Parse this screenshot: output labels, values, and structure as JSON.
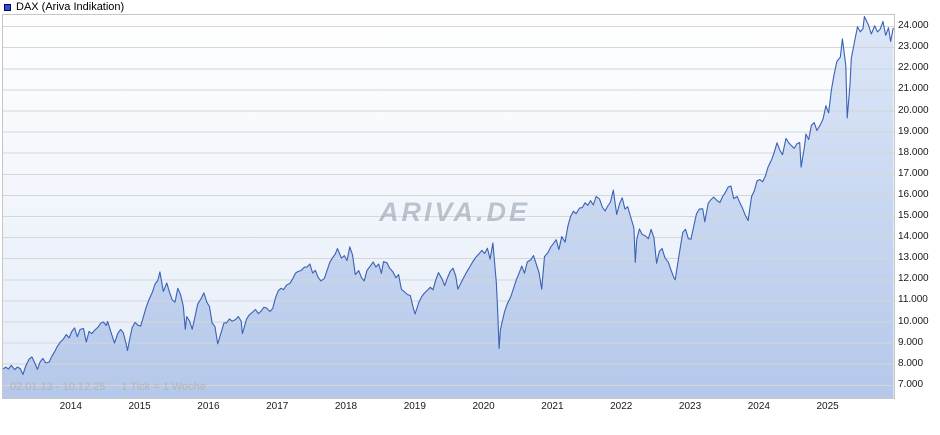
{
  "header": {
    "title": "DAX (Ariva Indikation)"
  },
  "watermark": "ARIVA.DE",
  "footer": {
    "date_range": "02.01.13 - 10.12.25",
    "tick_info": "1 Tick = 1 Woche"
  },
  "colors": {
    "series_swatch": "#2d4fd0",
    "line": "#3a62b5",
    "area_top": "#dce7f8",
    "area_bottom": "#b5c8ea",
    "grid": "#d6d6d6"
  },
  "chart_data": {
    "type": "area",
    "title": "DAX (Ariva Indikation)",
    "series_name": "DAX",
    "legend_position": "top-left",
    "grid": "horizontal",
    "xlim": [
      2013.0,
      2025.95
    ],
    "ylim": [
      6400,
      24550
    ],
    "x_ticks": [
      2014,
      2015,
      2016,
      2017,
      2018,
      2019,
      2020,
      2021,
      2022,
      2023,
      2024,
      2025
    ],
    "x_tick_labels": [
      "2014",
      "2015",
      "2016",
      "2017",
      "2018",
      "2019",
      "2020",
      "2021",
      "2022",
      "2023",
      "2024",
      "2025"
    ],
    "y_ticks": [
      7000,
      8000,
      9000,
      10000,
      11000,
      12000,
      13000,
      14000,
      15000,
      16000,
      17000,
      18000,
      19000,
      20000,
      21000,
      22000,
      23000,
      24000
    ],
    "y_tick_labels": [
      "7.000",
      "8.000",
      "9.000",
      "10.000",
      "11.000",
      "12.000",
      "13.000",
      "14.000",
      "15.000",
      "16.000",
      "17.000",
      "18.000",
      "19.000",
      "20.000",
      "21.000",
      "22.000",
      "23.000",
      "24.000"
    ],
    "points": [
      [
        2013.0,
        7778
      ],
      [
        2013.04,
        7858
      ],
      [
        2013.08,
        7776
      ],
      [
        2013.12,
        7950
      ],
      [
        2013.17,
        7741
      ],
      [
        2013.21,
        7870
      ],
      [
        2013.25,
        7795
      ],
      [
        2013.29,
        7520
      ],
      [
        2013.33,
        7914
      ],
      [
        2013.38,
        8245
      ],
      [
        2013.42,
        8349
      ],
      [
        2013.46,
        8080
      ],
      [
        2013.5,
        7759
      ],
      [
        2013.54,
        8120
      ],
      [
        2013.58,
        8276
      ],
      [
        2013.62,
        8060
      ],
      [
        2013.67,
        8103
      ],
      [
        2013.71,
        8380
      ],
      [
        2013.75,
        8594
      ],
      [
        2013.79,
        8850
      ],
      [
        2013.83,
        9034
      ],
      [
        2013.88,
        9200
      ],
      [
        2013.92,
        9405
      ],
      [
        2013.96,
        9250
      ],
      [
        2014.0,
        9552
      ],
      [
        2014.04,
        9720
      ],
      [
        2014.08,
        9306
      ],
      [
        2014.12,
        9650
      ],
      [
        2014.17,
        9692
      ],
      [
        2014.21,
        9050
      ],
      [
        2014.25,
        9556
      ],
      [
        2014.29,
        9450
      ],
      [
        2014.33,
        9603
      ],
      [
        2014.38,
        9750
      ],
      [
        2014.42,
        9943
      ],
      [
        2014.46,
        10000
      ],
      [
        2014.5,
        9833
      ],
      [
        2014.52,
        10029
      ],
      [
        2014.58,
        9407
      ],
      [
        2014.62,
        9000
      ],
      [
        2014.67,
        9470
      ],
      [
        2014.71,
        9650
      ],
      [
        2014.75,
        9474
      ],
      [
        2014.79,
        8950
      ],
      [
        2014.81,
        8650
      ],
      [
        2014.85,
        9327
      ],
      [
        2014.88,
        9750
      ],
      [
        2014.92,
        9981
      ],
      [
        2014.96,
        9850
      ],
      [
        2015.0,
        9806
      ],
      [
        2015.04,
        10250
      ],
      [
        2015.08,
        10694
      ],
      [
        2015.12,
        11050
      ],
      [
        2015.17,
        11402
      ],
      [
        2015.21,
        11800
      ],
      [
        2015.25,
        11966
      ],
      [
        2015.28,
        12375
      ],
      [
        2015.33,
        11454
      ],
      [
        2015.38,
        11850
      ],
      [
        2015.42,
        11414
      ],
      [
        2015.46,
        11040
      ],
      [
        2015.5,
        10945
      ],
      [
        2015.54,
        11600
      ],
      [
        2015.58,
        11309
      ],
      [
        2015.62,
        10750
      ],
      [
        2015.65,
        9648
      ],
      [
        2015.67,
        10259
      ],
      [
        2015.71,
        10050
      ],
      [
        2015.75,
        9660
      ],
      [
        2015.79,
        10250
      ],
      [
        2015.83,
        10850
      ],
      [
        2015.88,
        11120
      ],
      [
        2015.92,
        11382
      ],
      [
        2015.96,
        10950
      ],
      [
        2016.0,
        10743
      ],
      [
        2016.04,
        9950
      ],
      [
        2016.08,
        9798
      ],
      [
        2016.12,
        8968
      ],
      [
        2016.17,
        9495
      ],
      [
        2016.21,
        9950
      ],
      [
        2016.25,
        9966
      ],
      [
        2016.29,
        10150
      ],
      [
        2016.33,
        10039
      ],
      [
        2016.38,
        10120
      ],
      [
        2016.42,
        10263
      ],
      [
        2016.46,
        10050
      ],
      [
        2016.48,
        9450
      ],
      [
        2016.5,
        9680
      ],
      [
        2016.54,
        10150
      ],
      [
        2016.58,
        10337
      ],
      [
        2016.62,
        10450
      ],
      [
        2016.67,
        10593
      ],
      [
        2016.71,
        10400
      ],
      [
        2016.75,
        10511
      ],
      [
        2016.79,
        10700
      ],
      [
        2016.83,
        10665
      ],
      [
        2016.88,
        10500
      ],
      [
        2016.92,
        10640
      ],
      [
        2016.96,
        11150
      ],
      [
        2017.0,
        11481
      ],
      [
        2017.04,
        11600
      ],
      [
        2017.08,
        11535
      ],
      [
        2017.12,
        11750
      ],
      [
        2017.17,
        11834
      ],
      [
        2017.21,
        12050
      ],
      [
        2017.25,
        12313
      ],
      [
        2017.29,
        12400
      ],
      [
        2017.33,
        12438
      ],
      [
        2017.38,
        12600
      ],
      [
        2017.42,
        12615
      ],
      [
        2017.46,
        12750
      ],
      [
        2017.5,
        12325
      ],
      [
        2017.54,
        12450
      ],
      [
        2017.58,
        12118
      ],
      [
        2017.62,
        11950
      ],
      [
        2017.67,
        12056
      ],
      [
        2017.71,
        12450
      ],
      [
        2017.75,
        12829
      ],
      [
        2017.79,
        13050
      ],
      [
        2017.83,
        13230
      ],
      [
        2017.86,
        13478
      ],
      [
        2017.92,
        13024
      ],
      [
        2017.96,
        13150
      ],
      [
        2018.0,
        12918
      ],
      [
        2018.04,
        13560
      ],
      [
        2018.08,
        13189
      ],
      [
        2018.12,
        12250
      ],
      [
        2018.17,
        12436
      ],
      [
        2018.21,
        12100
      ],
      [
        2018.25,
        11950
      ],
      [
        2018.29,
        12450
      ],
      [
        2018.33,
        12612
      ],
      [
        2018.38,
        12850
      ],
      [
        2018.42,
        12604
      ],
      [
        2018.46,
        12750
      ],
      [
        2018.5,
        12306
      ],
      [
        2018.53,
        12860
      ],
      [
        2018.58,
        12806
      ],
      [
        2018.62,
        12550
      ],
      [
        2018.67,
        12364
      ],
      [
        2018.71,
        12100
      ],
      [
        2018.75,
        12247
      ],
      [
        2018.79,
        11550
      ],
      [
        2018.83,
        11447
      ],
      [
        2018.88,
        11300
      ],
      [
        2018.92,
        11257
      ],
      [
        2018.96,
        10700
      ],
      [
        2018.99,
        10380
      ],
      [
        2019.04,
        10900
      ],
      [
        2019.08,
        11173
      ],
      [
        2019.12,
        11350
      ],
      [
        2019.17,
        11515
      ],
      [
        2019.21,
        11650
      ],
      [
        2019.25,
        11526
      ],
      [
        2019.29,
        12000
      ],
      [
        2019.33,
        12344
      ],
      [
        2019.38,
        12050
      ],
      [
        2019.42,
        11727
      ],
      [
        2019.46,
        12100
      ],
      [
        2019.5,
        12399
      ],
      [
        2019.54,
        12550
      ],
      [
        2019.58,
        12189
      ],
      [
        2019.61,
        11560
      ],
      [
        2019.67,
        11939
      ],
      [
        2019.71,
        12200
      ],
      [
        2019.75,
        12428
      ],
      [
        2019.79,
        12650
      ],
      [
        2019.83,
        12867
      ],
      [
        2019.88,
        13100
      ],
      [
        2019.92,
        13236
      ],
      [
        2019.96,
        13400
      ],
      [
        2020.0,
        13249
      ],
      [
        2020.04,
        13500
      ],
      [
        2020.08,
        12982
      ],
      [
        2020.12,
        13744
      ],
      [
        2020.17,
        11890
      ],
      [
        2020.19,
        10500
      ],
      [
        2020.21,
        8750
      ],
      [
        2020.23,
        9633
      ],
      [
        2020.25,
        9936
      ],
      [
        2020.29,
        10500
      ],
      [
        2020.33,
        10862
      ],
      [
        2020.38,
        11200
      ],
      [
        2020.42,
        11587
      ],
      [
        2020.46,
        12000
      ],
      [
        2020.5,
        12311
      ],
      [
        2020.54,
        12650
      ],
      [
        2020.58,
        12313
      ],
      [
        2020.62,
        12850
      ],
      [
        2020.67,
        12945
      ],
      [
        2020.71,
        13150
      ],
      [
        2020.75,
        12761
      ],
      [
        2020.79,
        12350
      ],
      [
        2020.83,
        11556
      ],
      [
        2020.87,
        13100
      ],
      [
        2020.92,
        13291
      ],
      [
        2020.96,
        13550
      ],
      [
        2021.0,
        13719
      ],
      [
        2021.04,
        13900
      ],
      [
        2021.08,
        13432
      ],
      [
        2021.12,
        14050
      ],
      [
        2021.17,
        13786
      ],
      [
        2021.21,
        14550
      ],
      [
        2021.25,
        15008
      ],
      [
        2021.29,
        15250
      ],
      [
        2021.33,
        15136
      ],
      [
        2021.38,
        15400
      ],
      [
        2021.42,
        15421
      ],
      [
        2021.46,
        15650
      ],
      [
        2021.5,
        15531
      ],
      [
        2021.54,
        15750
      ],
      [
        2021.58,
        15544
      ],
      [
        2021.62,
        15950
      ],
      [
        2021.67,
        15835
      ],
      [
        2021.71,
        15450
      ],
      [
        2021.75,
        15261
      ],
      [
        2021.79,
        15500
      ],
      [
        2021.83,
        15689
      ],
      [
        2021.87,
        16250
      ],
      [
        2021.92,
        15100
      ],
      [
        2021.96,
        15600
      ],
      [
        2022.0,
        15885
      ],
      [
        2022.04,
        15350
      ],
      [
        2022.08,
        15471
      ],
      [
        2022.12,
        15000
      ],
      [
        2022.17,
        14461
      ],
      [
        2022.19,
        12831
      ],
      [
        2022.21,
        13900
      ],
      [
        2022.25,
        14415
      ],
      [
        2022.29,
        14150
      ],
      [
        2022.33,
        14098
      ],
      [
        2022.38,
        13950
      ],
      [
        2022.42,
        14388
      ],
      [
        2022.46,
        14000
      ],
      [
        2022.5,
        12784
      ],
      [
        2022.54,
        13350
      ],
      [
        2022.58,
        13484
      ],
      [
        2022.62,
        13050
      ],
      [
        2022.67,
        12835
      ],
      [
        2022.71,
        12450
      ],
      [
        2022.75,
        12114
      ],
      [
        2022.77,
        12000
      ],
      [
        2022.83,
        13254
      ],
      [
        2022.88,
        14250
      ],
      [
        2022.92,
        14397
      ],
      [
        2022.96,
        13950
      ],
      [
        2023.0,
        13924
      ],
      [
        2023.04,
        14550
      ],
      [
        2023.08,
        15128
      ],
      [
        2023.12,
        15350
      ],
      [
        2023.17,
        15365
      ],
      [
        2023.2,
        14750
      ],
      [
        2023.25,
        15629
      ],
      [
        2023.29,
        15800
      ],
      [
        2023.33,
        15922
      ],
      [
        2023.38,
        15750
      ],
      [
        2023.42,
        15664
      ],
      [
        2023.46,
        15950
      ],
      [
        2023.5,
        16148
      ],
      [
        2023.54,
        16400
      ],
      [
        2023.58,
        16447
      ],
      [
        2023.62,
        15850
      ],
      [
        2023.67,
        15947
      ],
      [
        2023.71,
        15650
      ],
      [
        2023.75,
        15387
      ],
      [
        2023.79,
        15050
      ],
      [
        2023.83,
        14810
      ],
      [
        2023.88,
        15950
      ],
      [
        2023.92,
        16215
      ],
      [
        2023.96,
        16700
      ],
      [
        2024.0,
        16752
      ],
      [
        2024.04,
        16650
      ],
      [
        2024.08,
        16904
      ],
      [
        2024.12,
        17350
      ],
      [
        2024.17,
        17678
      ],
      [
        2024.21,
        18050
      ],
      [
        2024.25,
        18492
      ],
      [
        2024.29,
        18150
      ],
      [
        2024.33,
        17932
      ],
      [
        2024.38,
        18700
      ],
      [
        2024.42,
        18498
      ],
      [
        2024.46,
        18350
      ],
      [
        2024.5,
        18235
      ],
      [
        2024.54,
        18450
      ],
      [
        2024.58,
        18509
      ],
      [
        2024.6,
        17340
      ],
      [
        2024.65,
        18350
      ],
      [
        2024.67,
        18907
      ],
      [
        2024.71,
        18650
      ],
      [
        2024.75,
        19325
      ],
      [
        2024.79,
        19450
      ],
      [
        2024.83,
        19078
      ],
      [
        2024.88,
        19350
      ],
      [
        2024.92,
        19626
      ],
      [
        2024.96,
        20250
      ],
      [
        2025.0,
        19909
      ],
      [
        2025.04,
        21000
      ],
      [
        2025.08,
        21732
      ],
      [
        2025.12,
        22350
      ],
      [
        2025.17,
        22551
      ],
      [
        2025.2,
        23419
      ],
      [
        2025.25,
        22163
      ],
      [
        2025.27,
        19670
      ],
      [
        2025.31,
        21250
      ],
      [
        2025.33,
        22497
      ],
      [
        2025.38,
        23350
      ],
      [
        2025.42,
        23997
      ],
      [
        2025.46,
        23750
      ],
      [
        2025.5,
        23910
      ],
      [
        2025.52,
        24479
      ],
      [
        2025.56,
        24200
      ],
      [
        2025.58,
        24066
      ],
      [
        2025.62,
        23650
      ],
      [
        2025.67,
        24037
      ],
      [
        2025.71,
        23750
      ],
      [
        2025.75,
        23881
      ],
      [
        2025.79,
        24241
      ],
      [
        2025.83,
        23589
      ],
      [
        2025.87,
        23950
      ],
      [
        2025.9,
        23300
      ],
      [
        2025.94,
        23940
      ]
    ]
  }
}
